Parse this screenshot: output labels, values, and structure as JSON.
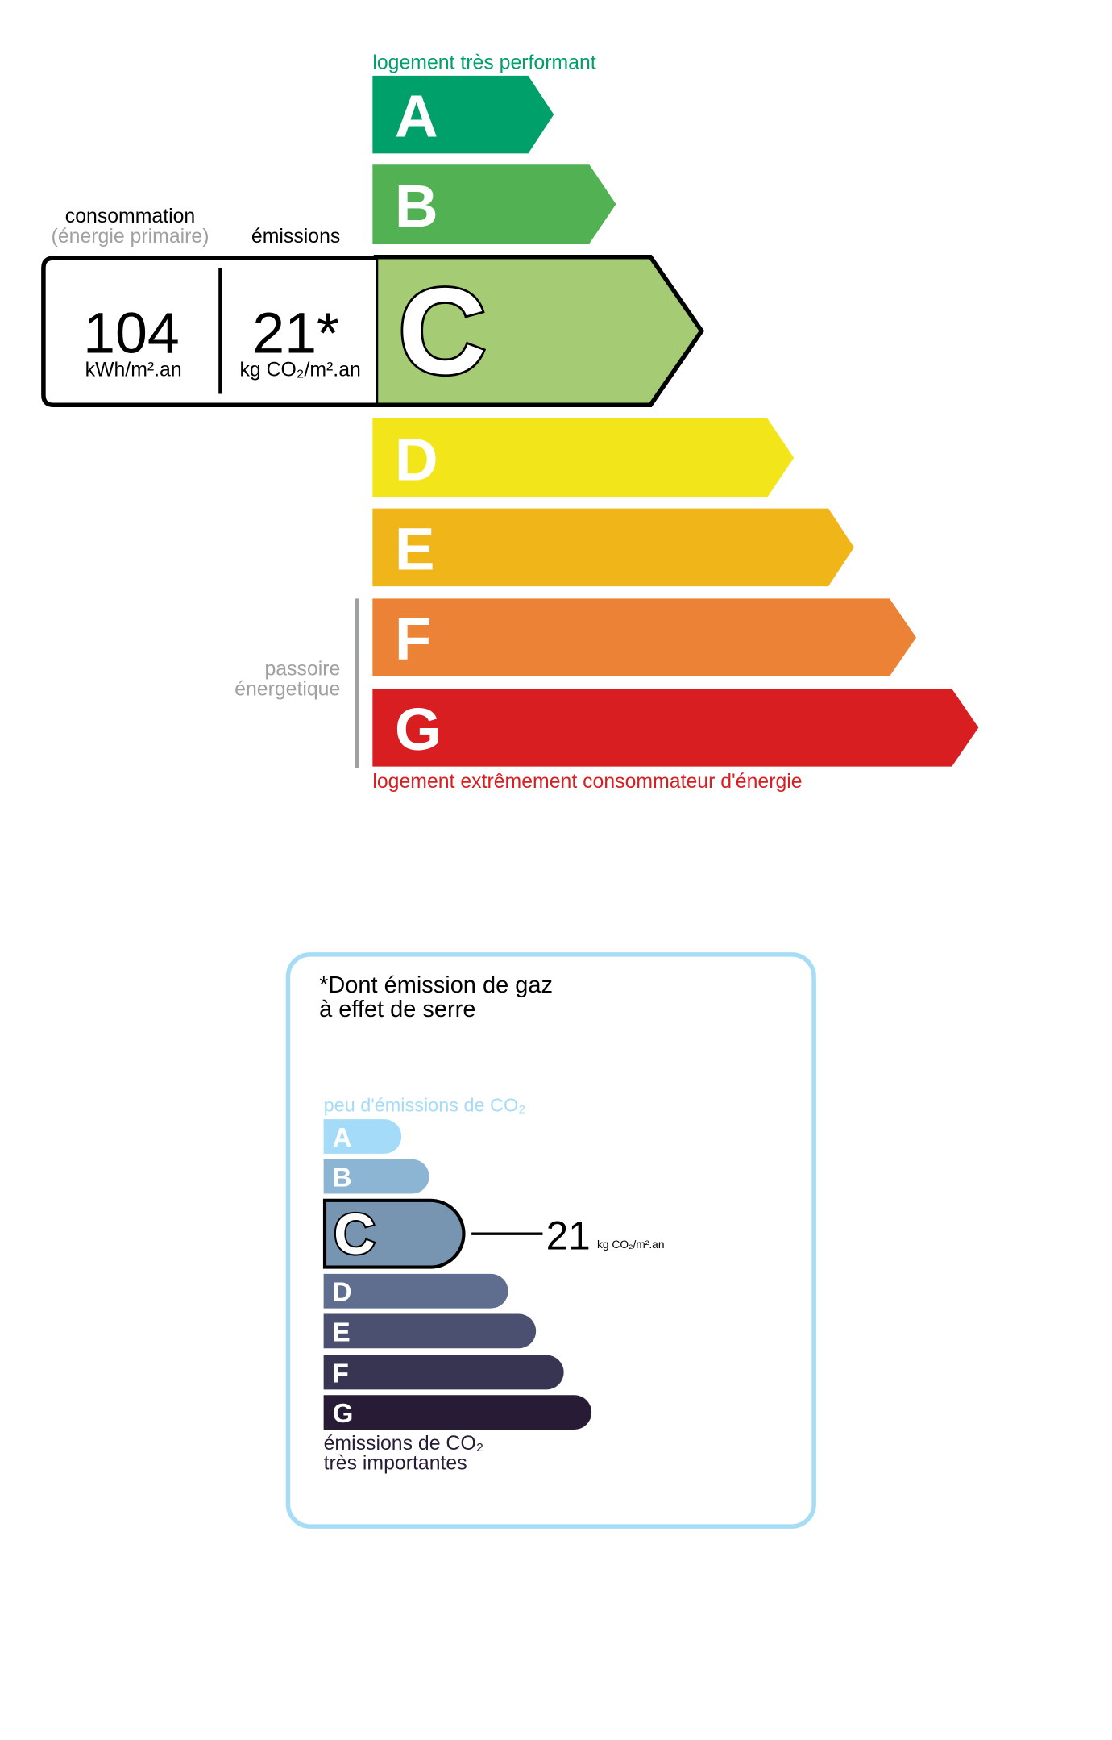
{
  "energy": {
    "top_label": "logement très performant",
    "bottom_label": "logement extrêmement consommateur d'énergie",
    "passoire": [
      "passoire",
      "énergetique"
    ],
    "consumption_label": "consommation",
    "consumption_sub": "(énergie primaire)",
    "emissions_label": "émissions",
    "consumption_value": "104",
    "consumption_unit": "kWh/m².an",
    "emissions_value": "21*",
    "emissions_unit": "kg CO₂/m².an",
    "current_class": "C",
    "classes": [
      {
        "letter": "A",
        "color": "#00a06b"
      },
      {
        "letter": "B",
        "color": "#52b153"
      },
      {
        "letter": "C",
        "color": "#a5cc74"
      },
      {
        "letter": "D",
        "color": "#f2e61b"
      },
      {
        "letter": "E",
        "color": "#f0b519"
      },
      {
        "letter": "F",
        "color": "#eb8235"
      },
      {
        "letter": "G",
        "color": "#d81e21"
      }
    ],
    "colors": {
      "top_label": "#00a06b",
      "bottom_label": "#d81e21",
      "passoire": "#a0a0a0"
    }
  },
  "ges": {
    "title_line1": "*Dont émission de gaz",
    "title_line2": "à effet de serre",
    "top_label": "peu d'émissions de CO₂",
    "bottom_label_line1": "émissions de CO₂",
    "bottom_label_line2": "très importantes",
    "value": "21",
    "unit": "kg CO₂/m².an",
    "current_class": "C",
    "classes": [
      {
        "letter": "A",
        "color": "#a4dbf8"
      },
      {
        "letter": "B",
        "color": "#8cb4d3"
      },
      {
        "letter": "C",
        "color": "#7794b1"
      },
      {
        "letter": "D",
        "color": "#5f6d8f"
      },
      {
        "letter": "E",
        "color": "#4c5070"
      },
      {
        "letter": "F",
        "color": "#383552"
      },
      {
        "letter": "G",
        "color": "#281b35"
      }
    ],
    "colors": {
      "border": "#a6dcf6",
      "top_label": "#a4dbf8",
      "bottom_label": "#281b35"
    }
  }
}
